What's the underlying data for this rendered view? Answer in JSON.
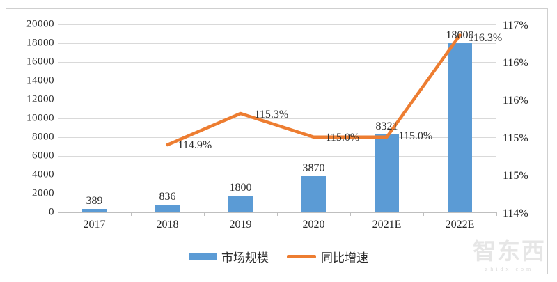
{
  "colors": {
    "bar": "#5b9bd5",
    "line": "#ed7d31",
    "grid": "#d9d9d9",
    "axis": "#bfbfbf",
    "text": "#2b2b2b"
  },
  "legend": {
    "bar_label": "市场规模",
    "line_label": "同比增速"
  },
  "watermark": {
    "name": "智东西",
    "url": "zhidx.com"
  },
  "chart_data": {
    "type": "bar",
    "subtype": "combo-bar-line",
    "title": "",
    "xlabel": "",
    "ylabel": "",
    "grid": true,
    "legend_position": "bottom",
    "categories": [
      "2017",
      "2018",
      "2019",
      "2020",
      "2021E",
      "2022E"
    ],
    "series": [
      {
        "name": "市场规模",
        "type": "bar",
        "axis": "left",
        "values": [
          389,
          836,
          1800,
          3870,
          8321,
          18000
        ],
        "data_labels": [
          "389",
          "836",
          "1800",
          "3870",
          "8321",
          "18000"
        ]
      },
      {
        "name": "同比增速",
        "type": "line",
        "axis": "right",
        "values": [
          null,
          114.9,
          115.3,
          115.0,
          115.0,
          116.3
        ],
        "data_labels": [
          "114.9%",
          "115.3%",
          "115.0%",
          "115.0%",
          "116.3%"
        ]
      }
    ],
    "left_axis": {
      "min": 0,
      "max": 20000,
      "step": 2000,
      "tick_labels": [
        "20000",
        "18000",
        "16000",
        "14000",
        "12000",
        "10000",
        "8000",
        "6000",
        "4000",
        "2000",
        "0"
      ]
    },
    "right_axis": {
      "min": 114,
      "max": 117,
      "tick_labels": [
        "117%",
        "116%",
        "116%",
        "115%",
        "115%",
        "114%"
      ]
    }
  }
}
